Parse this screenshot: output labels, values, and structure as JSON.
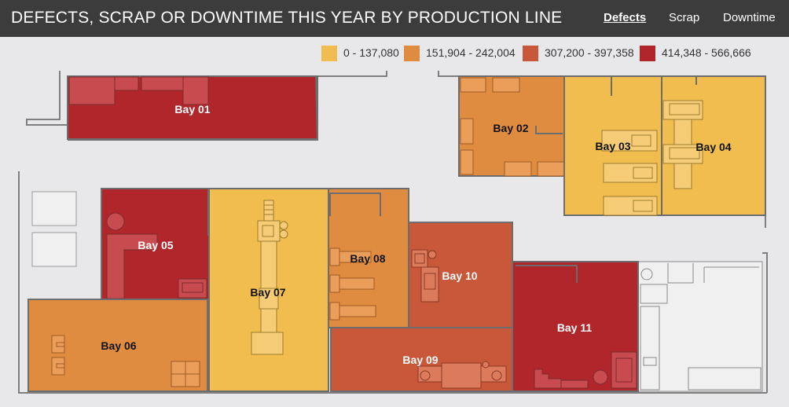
{
  "header": {
    "title": "DEFECTS, SCRAP OR DOWNTIME THIS YEAR BY PRODUCTION LINE",
    "tabs": [
      {
        "label": "Defects",
        "active": true
      },
      {
        "label": "Scrap",
        "active": false
      },
      {
        "label": "Downtime",
        "active": false
      }
    ]
  },
  "legend": [
    {
      "label": "0 - 137,080",
      "color": "#f2bd4f"
    },
    {
      "label": "151,904 - 242,004",
      "color": "#e08c40"
    },
    {
      "label": "307,200 - 397,358",
      "color": "#c9573a"
    },
    {
      "label": "414,348 - 566,666",
      "color": "#b0262b"
    }
  ],
  "bays": [
    {
      "label": "Bay 01",
      "category": 3
    },
    {
      "label": "Bay 02",
      "category": 1
    },
    {
      "label": "Bay 03",
      "category": 0
    },
    {
      "label": "Bay 04",
      "category": 0
    },
    {
      "label": "Bay 05",
      "category": 3
    },
    {
      "label": "Bay 06",
      "category": 1
    },
    {
      "label": "Bay 07",
      "category": 0
    },
    {
      "label": "Bay 08",
      "category": 1
    },
    {
      "label": "Bay 09",
      "category": 2
    },
    {
      "label": "Bay 10",
      "category": 2
    },
    {
      "label": "Bay 11",
      "category": 3
    }
  ]
}
